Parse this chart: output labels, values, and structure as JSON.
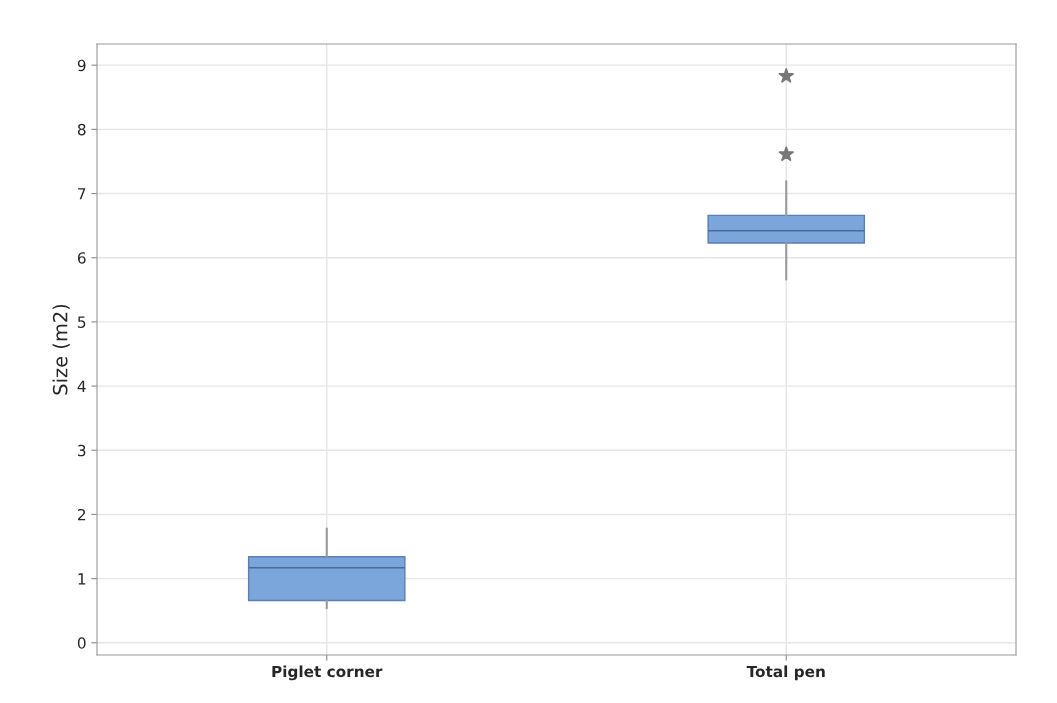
{
  "chart_data": {
    "type": "box",
    "ylabel": "Size (m2)",
    "categories": [
      "Piglet corner",
      "Total pen"
    ],
    "series": [
      {
        "color": "#7aa6dc",
        "boxes": [
          {
            "low": 0.54,
            "q1": 0.66,
            "median": 1.17,
            "q3": 1.34,
            "high": 1.78
          },
          {
            "low": 5.66,
            "q1": 6.23,
            "median": 6.42,
            "q3": 6.66,
            "high": 7.19,
            "outliers": [
              7.61,
              8.83
            ]
          }
        ]
      }
    ],
    "ylim": [
      -0.19,
      9.33
    ],
    "yticks": [
      0,
      1,
      2,
      3,
      4,
      5,
      6,
      7,
      8,
      9
    ],
    "grid": true,
    "marker": "star"
  }
}
